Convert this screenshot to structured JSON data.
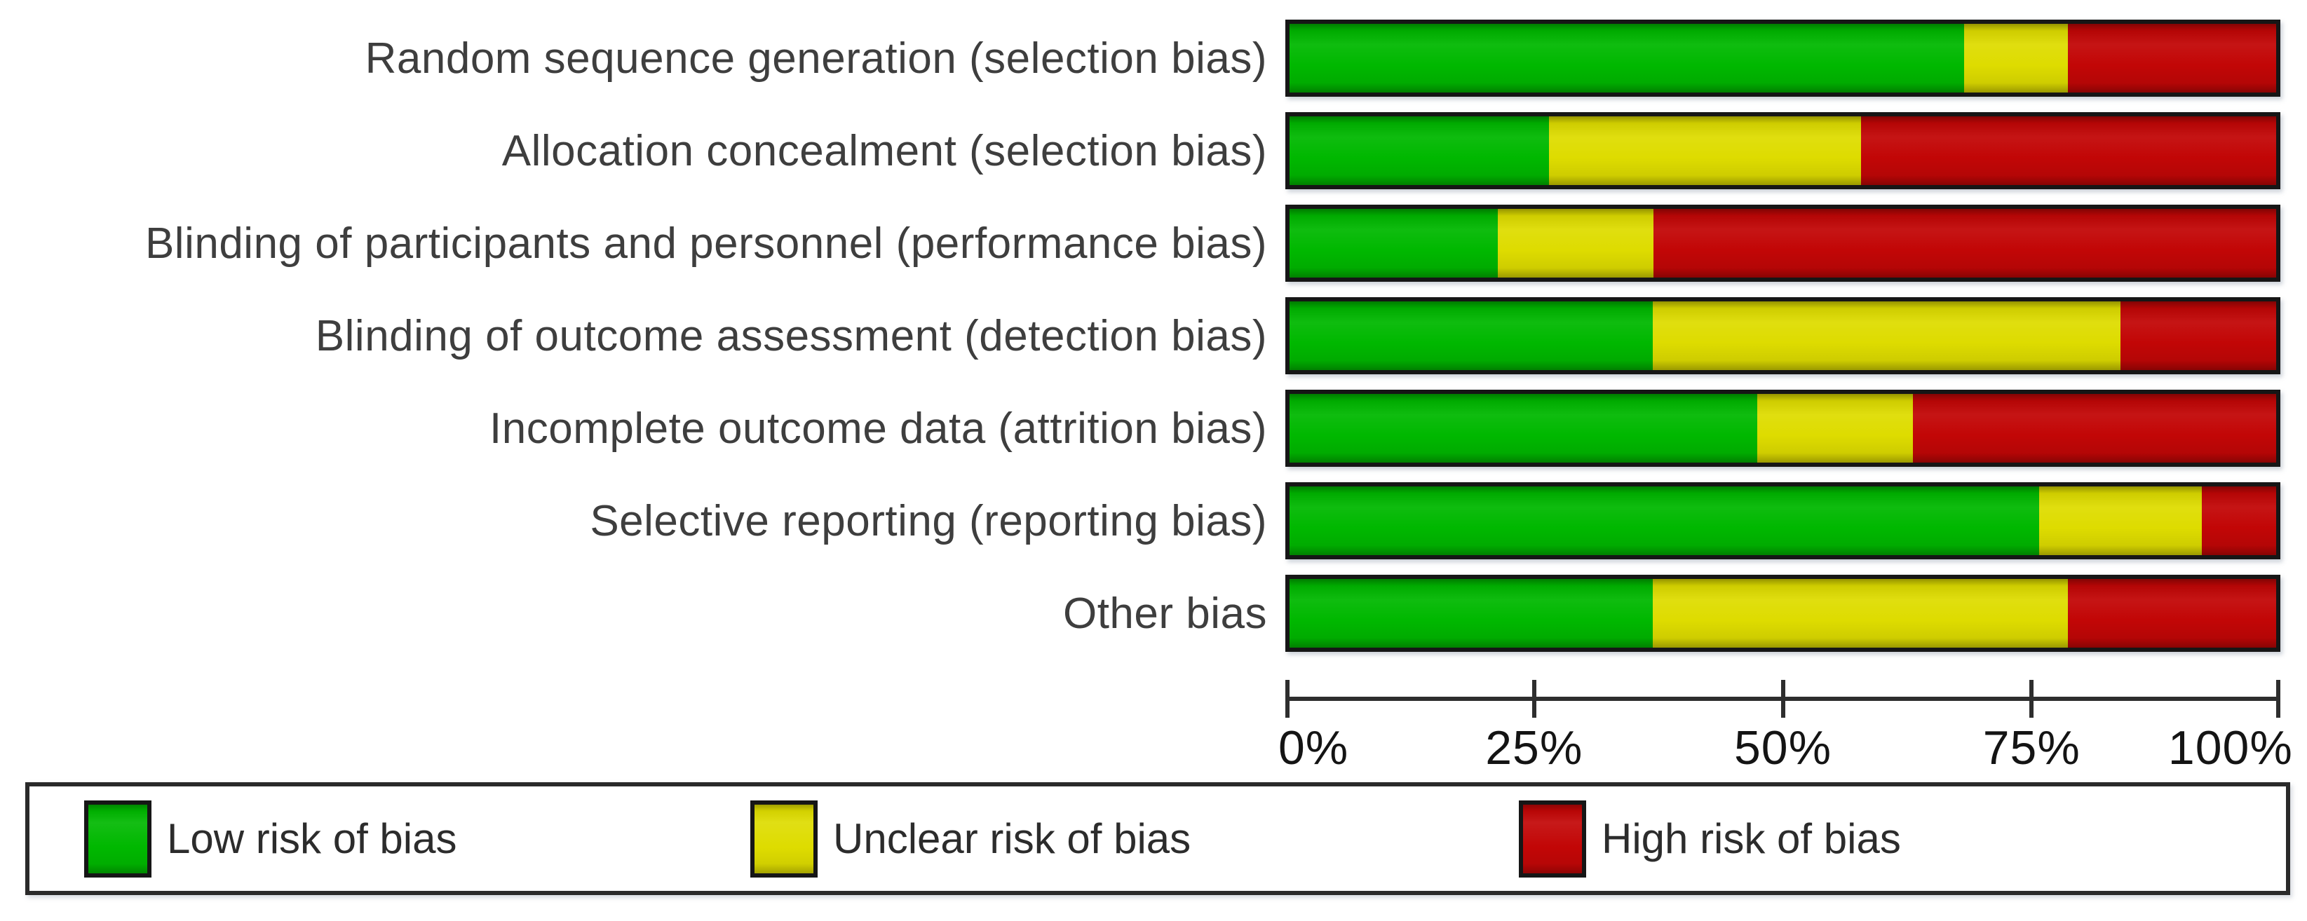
{
  "figure": {
    "background": "#ffffff",
    "label_color": "#3e3e3e",
    "axis_color": "#2e2e2e",
    "bar_border_color": "#161616"
  },
  "chart_data": {
    "type": "bar",
    "orientation": "horizontal",
    "stacked": true,
    "unit": "percent",
    "title": "",
    "xlabel": "",
    "ylabel": "",
    "categories": [
      "Random sequence generation (selection bias)",
      "Allocation concealment (selection bias)",
      "Blinding of participants and personnel (performance bias)",
      "Blinding of outcome assessment (detection bias)",
      "Incomplete outcome data (attrition bias)",
      "Selective reporting (reporting bias)",
      "Other bias"
    ],
    "series": [
      {
        "name": "Low risk of bias",
        "color": "#00b800",
        "values": [
          68.4,
          26.3,
          21.1,
          36.8,
          47.4,
          76.0,
          36.8
        ]
      },
      {
        "name": "Unclear risk of bias",
        "color": "#dedc00",
        "values": [
          10.5,
          31.6,
          15.8,
          47.4,
          15.8,
          16.5,
          42.1
        ]
      },
      {
        "name": "High risk of bias",
        "color": "#c20606",
        "values": [
          21.1,
          42.1,
          63.1,
          15.8,
          36.8,
          7.5,
          21.1
        ]
      }
    ],
    "xlim": [
      0,
      100
    ],
    "x_ticks": [
      0,
      25,
      50,
      75,
      100
    ],
    "x_tick_labels": [
      "0%",
      "25%",
      "50%",
      "75%",
      "100%"
    ],
    "grid": false,
    "legend_position": "bottom"
  },
  "legend": {
    "items": [
      {
        "label": "Low risk of bias",
        "color": "#00b800"
      },
      {
        "label": "Unclear risk of bias",
        "color": "#dedc00"
      },
      {
        "label": "High risk of bias",
        "color": "#c20606"
      }
    ]
  }
}
